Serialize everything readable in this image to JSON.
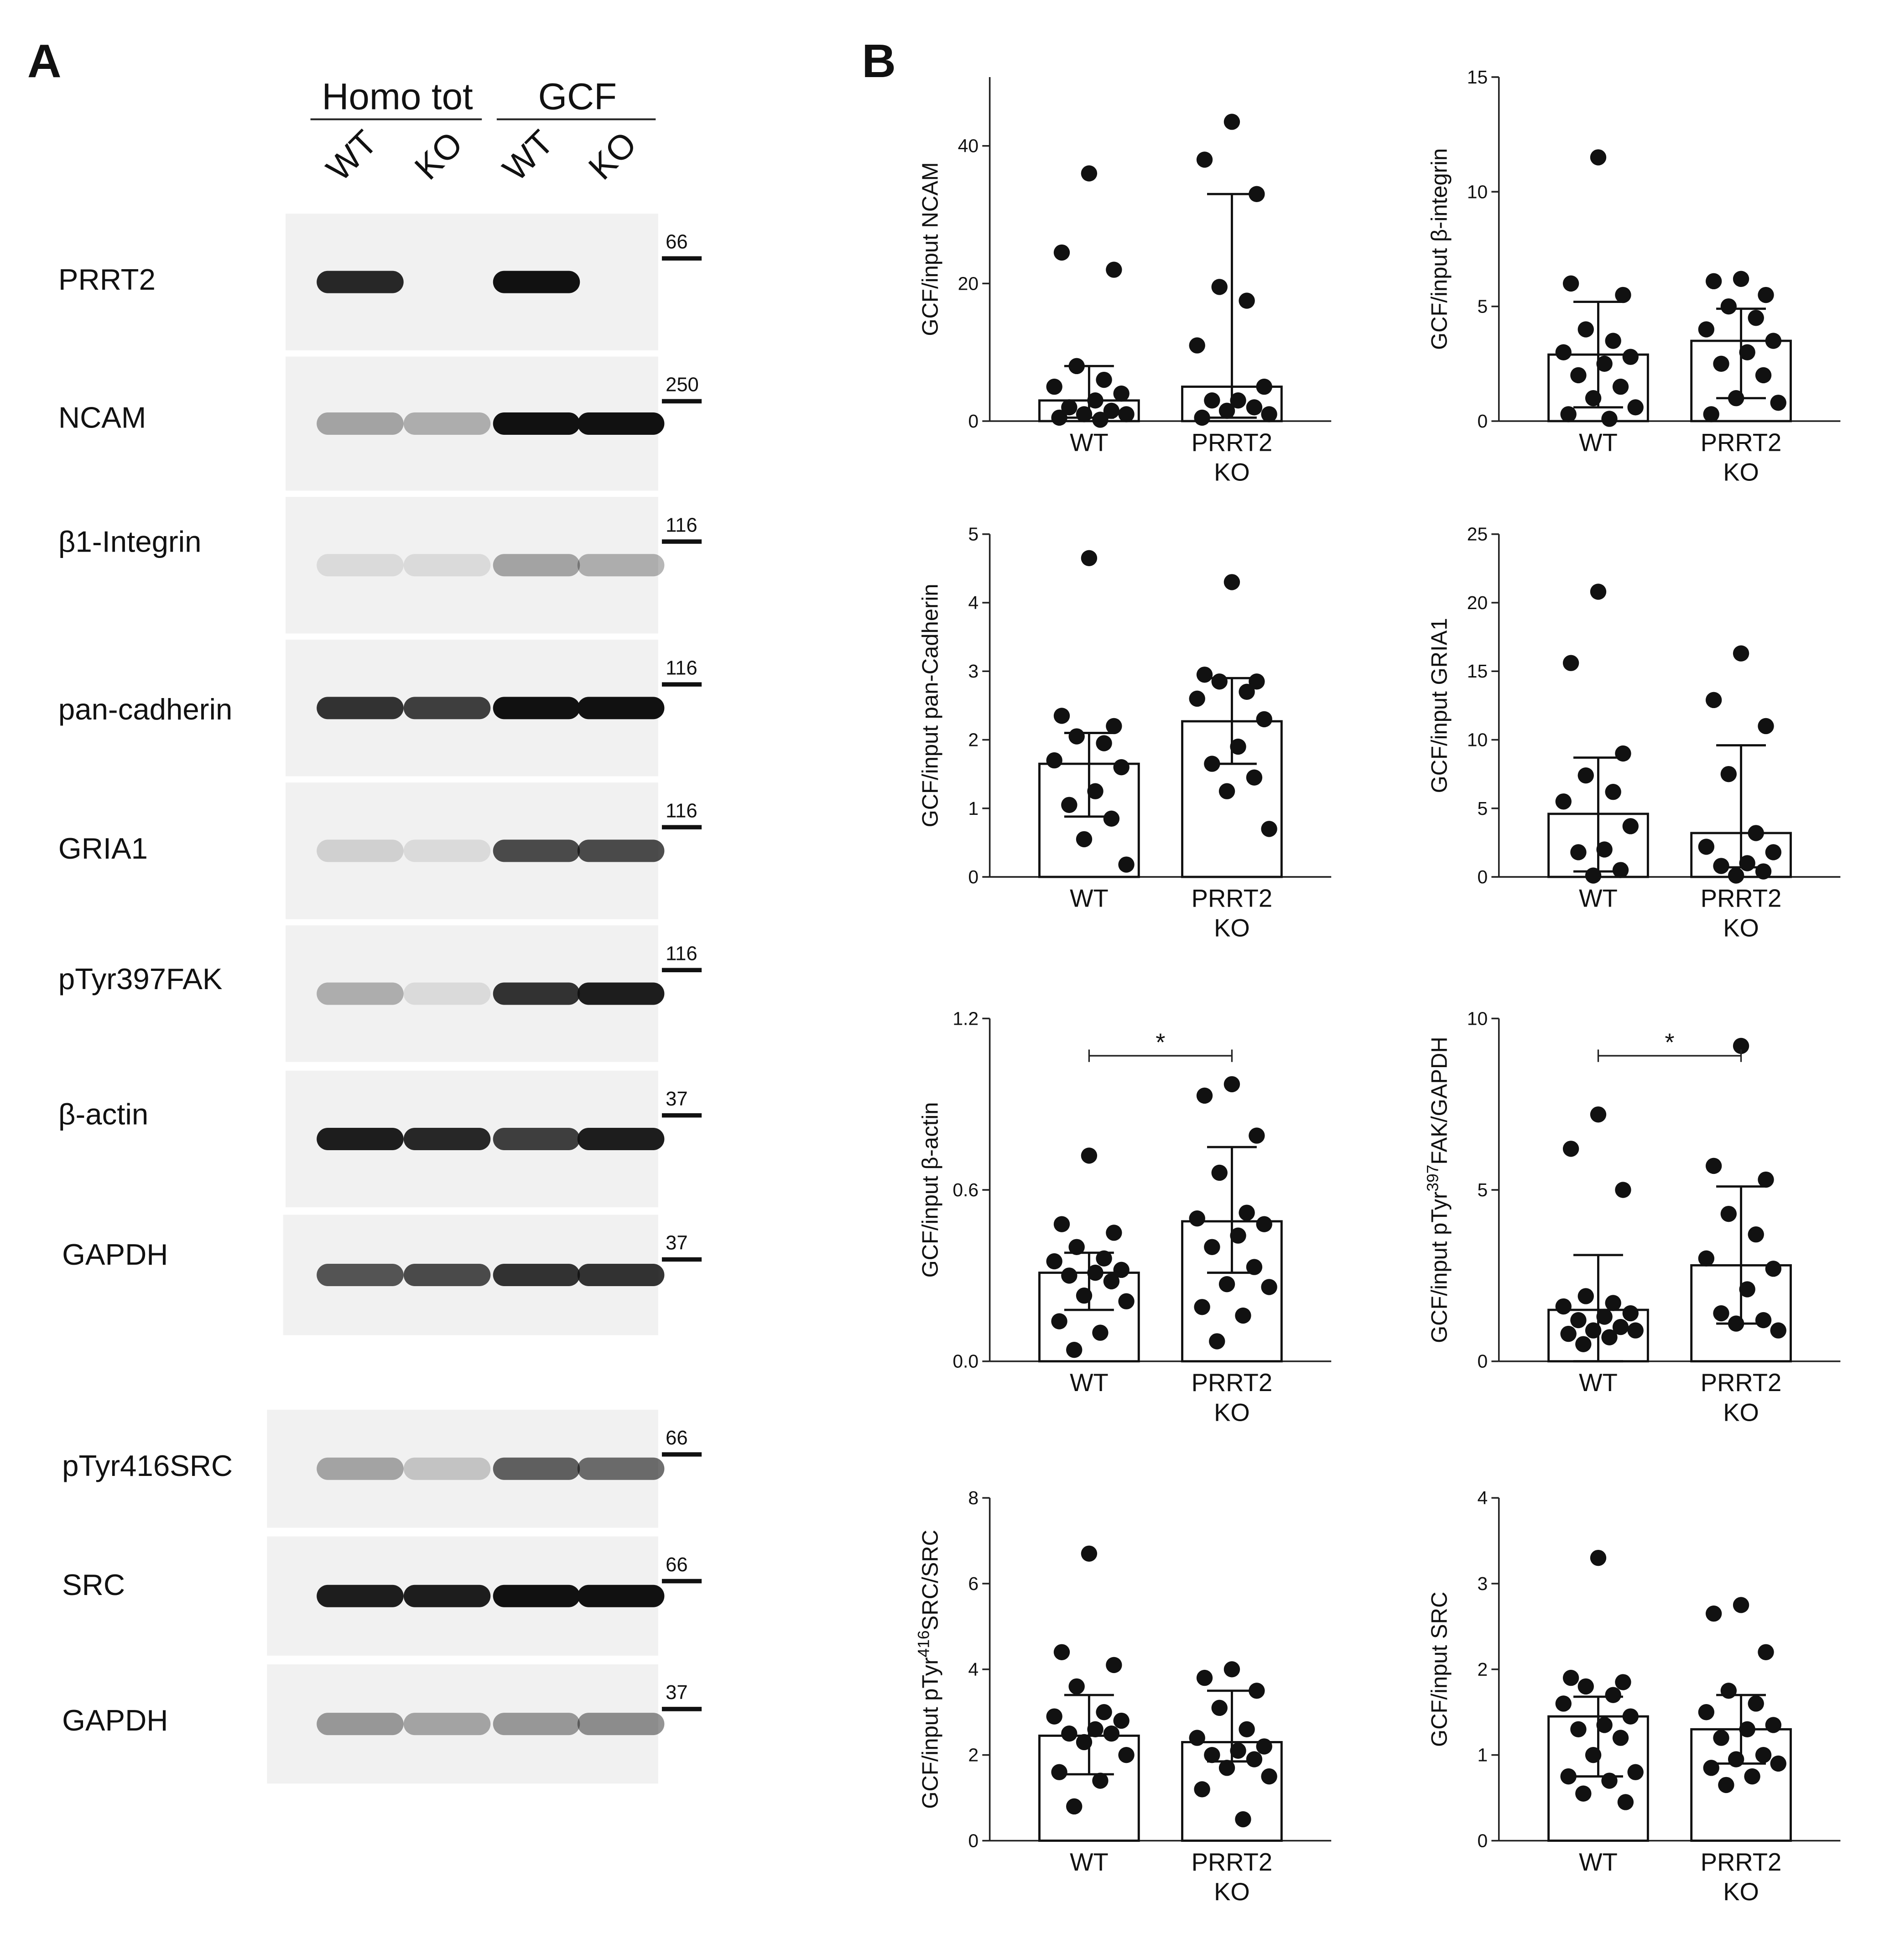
{
  "panel_labels": [
    "A",
    "B"
  ],
  "blot": {
    "groups": [
      "Homo tot",
      "GCF"
    ],
    "lanes": [
      "WT",
      "KO",
      "WT",
      "KO"
    ],
    "rows": [
      {
        "label": "PRRT2",
        "marker": 66
      },
      {
        "label": "NCAM",
        "marker": 250
      },
      {
        "label": "β1-Integrin",
        "marker": 116
      },
      {
        "label": "pan-cadherin",
        "marker": 116
      },
      {
        "label": "GRIA1",
        "marker": 116
      },
      {
        "label": "pTyr397FAK",
        "marker": 116
      },
      {
        "label": "β-actin",
        "marker": 37
      },
      {
        "label": "GAPDH",
        "marker": 37
      },
      {
        "label": "pTyr416SRC",
        "marker": 66
      },
      {
        "label": "SRC",
        "marker": 66
      },
      {
        "label": "GAPDH",
        "marker": 37
      }
    ]
  },
  "chart_data": [
    {
      "type": "bar_scatter",
      "ylabel": "GCF/input NCAM",
      "categories": [
        "WT",
        "PRRT2 KO"
      ],
      "values": [
        3,
        5
      ],
      "error_lower": [
        0.5,
        0.5
      ],
      "error_upper": [
        8,
        33
      ],
      "points": [
        [
          36,
          24.5,
          22,
          8,
          6,
          5,
          4,
          3,
          2,
          1.5,
          1,
          1,
          0.5,
          0.2
        ],
        [
          43.5,
          38,
          33,
          19.5,
          17.5,
          11,
          5,
          3,
          3,
          2,
          1.5,
          1,
          0.5
        ]
      ],
      "ylim": [
        0,
        50
      ],
      "yticks": [
        0,
        20,
        40
      ]
    },
    {
      "type": "bar_scatter",
      "ylabel": "GCF/input β-integrin",
      "categories": [
        "WT",
        "PRRT2 KO"
      ],
      "values": [
        2.9,
        3.5
      ],
      "error_lower": [
        0.6,
        1
      ],
      "error_upper": [
        5.2,
        4.9
      ],
      "points": [
        [
          11.5,
          6,
          5.5,
          4,
          3.5,
          3,
          2.8,
          2.5,
          2,
          1.5,
          1,
          0.6,
          0.3,
          0.1
        ],
        [
          6.2,
          6.1,
          5.5,
          5,
          4.5,
          4,
          3.5,
          3,
          2.5,
          2,
          1,
          0.8,
          0.3
        ]
      ],
      "ylim": [
        0,
        15
      ],
      "yticks": [
        0,
        5,
        10,
        15
      ]
    },
    {
      "type": "bar_scatter",
      "ylabel": "GCF/input pan-Cadherin",
      "categories": [
        "WT",
        "PRRT2 KO"
      ],
      "values": [
        1.65,
        2.27
      ],
      "error_lower": [
        0.88,
        1.65
      ],
      "error_upper": [
        2.1,
        2.9
      ],
      "points": [
        [
          4.65,
          2.35,
          2.2,
          2.05,
          1.95,
          1.7,
          1.6,
          1.25,
          1.05,
          0.85,
          0.55,
          0.18
        ],
        [
          4.3,
          2.95,
          2.85,
          2.85,
          2.7,
          2.6,
          2.3,
          1.9,
          1.65,
          1.45,
          1.25,
          0.7
        ]
      ],
      "ylim": [
        0,
        5
      ],
      "yticks": [
        0,
        1,
        2,
        3,
        4,
        5
      ]
    },
    {
      "type": "bar_scatter",
      "ylabel": "GCF/input GRIA1",
      "categories": [
        "WT",
        "PRRT2 KO"
      ],
      "values": [
        4.6,
        3.2
      ],
      "error_lower": [
        0.4,
        0.7
      ],
      "error_upper": [
        8.7,
        9.6
      ],
      "points": [
        [
          20.8,
          15.6,
          9,
          7.4,
          6.2,
          5.5,
          3.7,
          2,
          1.8,
          0.5,
          0.1
        ],
        [
          16.3,
          12.9,
          11,
          7.5,
          3.2,
          2.2,
          1.8,
          1,
          0.8,
          0.4,
          0.1
        ]
      ],
      "ylim": [
        0,
        25
      ],
      "yticks": [
        0,
        5,
        10,
        15,
        20,
        25
      ]
    },
    {
      "type": "bar_scatter",
      "ylabel": "GCF/input β-actin",
      "categories": [
        "WT",
        "PRRT2 KO"
      ],
      "values": [
        0.31,
        0.49
      ],
      "error_lower": [
        0.18,
        0.31
      ],
      "error_upper": [
        0.38,
        0.75
      ],
      "points": [
        [
          0.72,
          0.48,
          0.45,
          0.4,
          0.36,
          0.35,
          0.32,
          0.31,
          0.3,
          0.28,
          0.23,
          0.21,
          0.14,
          0.1,
          0.04
        ],
        [
          0.97,
          0.93,
          0.79,
          0.66,
          0.52,
          0.5,
          0.48,
          0.44,
          0.4,
          0.33,
          0.27,
          0.26,
          0.19,
          0.16,
          0.07
        ]
      ],
      "significance": "*",
      "ylim": [
        0,
        1.2
      ],
      "yticks": [
        {
          "value": 0,
          "label": "0.0"
        },
        0.6,
        1.2
      ]
    },
    {
      "type": "bar_scatter",
      "ylabel": [
        "GCF/input pTyr",
        "397",
        "FAK/GAPDH"
      ],
      "categories": [
        "WT",
        "PRRT2 KO"
      ],
      "values": [
        1.5,
        2.8
      ],
      "error_lower": [
        0,
        1.1
      ],
      "error_upper": [
        3.1,
        5.1
      ],
      "points": [
        [
          7.2,
          6.2,
          5.0,
          1.9,
          1.7,
          1.6,
          1.4,
          1.3,
          1.2,
          1.0,
          0.9,
          0.9,
          0.8,
          0.7,
          0.5
        ],
        [
          9.2,
          5.7,
          5.3,
          4.3,
          3.7,
          3.0,
          2.7,
          2.1,
          1.4,
          1.2,
          1.1,
          0.9
        ]
      ],
      "significance": "*",
      "ylim": [
        0,
        10
      ],
      "yticks": [
        0,
        5,
        10
      ]
    },
    {
      "type": "bar_scatter",
      "ylabel": [
        "GCF/input pTyr",
        "416",
        "SRC/SRC"
      ],
      "categories": [
        "WT",
        "PRRT2 KO"
      ],
      "values": [
        2.45,
        2.3
      ],
      "error_lower": [
        1.55,
        1.85
      ],
      "error_upper": [
        3.4,
        3.5
      ],
      "points": [
        [
          6.7,
          4.4,
          4.1,
          3.6,
          3.0,
          2.9,
          2.8,
          2.6,
          2.5,
          2.5,
          2.3,
          2.0,
          1.6,
          1.4,
          0.8
        ],
        [
          4.0,
          3.8,
          3.5,
          3.1,
          2.6,
          2.4,
          2.2,
          2.1,
          2.0,
          1.9,
          1.7,
          1.5,
          1.2,
          0.5
        ]
      ],
      "ylim": [
        0,
        8
      ],
      "yticks": [
        0,
        2,
        4,
        6,
        8
      ]
    },
    {
      "type": "bar_scatter",
      "ylabel": "GCF/input SRC",
      "categories": [
        "WT",
        "PRRT2 KO"
      ],
      "values": [
        1.45,
        1.3
      ],
      "error_lower": [
        0.75,
        0.9
      ],
      "error_upper": [
        1.68,
        1.7
      ],
      "points": [
        [
          3.3,
          1.9,
          1.85,
          1.8,
          1.7,
          1.6,
          1.45,
          1.35,
          1.3,
          1.2,
          1.0,
          0.8,
          0.75,
          0.7,
          0.55,
          0.45
        ],
        [
          2.75,
          2.65,
          2.2,
          1.75,
          1.6,
          1.5,
          1.35,
          1.3,
          1.2,
          1.0,
          0.95,
          0.9,
          0.85,
          0.75,
          0.65
        ]
      ],
      "ylim": [
        0,
        4
      ],
      "yticks": [
        0,
        1,
        2,
        3,
        4
      ]
    }
  ]
}
